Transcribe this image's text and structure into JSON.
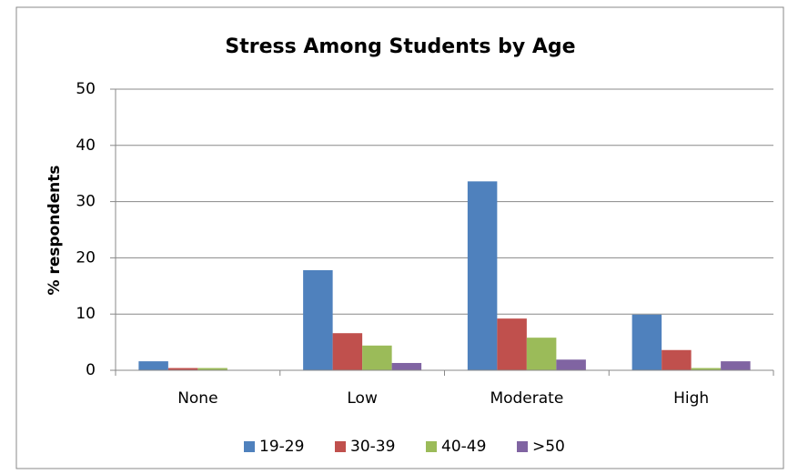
{
  "chart_data": {
    "type": "bar",
    "title": "Stress Among Students by Age",
    "y_label": "% respondents",
    "categories": [
      "None",
      "Low",
      "Moderate",
      "High"
    ],
    "series": [
      {
        "name": "19-29",
        "color": "#4f81bd",
        "values": [
          1.6,
          17.8,
          33.6,
          9.9
        ]
      },
      {
        "name": "30-39",
        "color": "#c0504d",
        "values": [
          0.4,
          6.6,
          9.2,
          3.6
        ]
      },
      {
        "name": "40-49",
        "color": "#9bbb59",
        "values": [
          0.4,
          4.4,
          5.8,
          0.4
        ]
      },
      {
        "name": ">50",
        "color": "#8064a2",
        "values": [
          0,
          1.3,
          1.9,
          1.6
        ]
      }
    ],
    "ylim": [
      0,
      50
    ],
    "yticks": [
      0,
      10,
      20,
      30,
      40,
      50
    ],
    "grid": true,
    "legend": "bottom"
  }
}
